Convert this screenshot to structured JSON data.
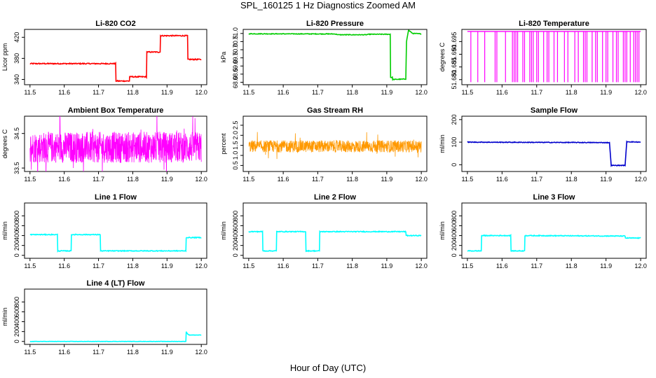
{
  "title": "SPL_160125  1 Hz Diagnostics Zoomed AM",
  "xlabel": "Hour of Day (UTC)",
  "chart_data": [
    {
      "type": "line",
      "title": "Li-820 CO2",
      "ylabel": "Licor ppm",
      "color": "#ff0000",
      "xlim": [
        11.5,
        12.0
      ],
      "ylim": [
        330,
        435
      ],
      "xticks": [
        "11.5",
        "11.6",
        "11.7",
        "11.8",
        "11.9",
        "12.0"
      ],
      "yticks": [
        "340",
        "380",
        "420"
      ],
      "grid": false,
      "noise": 1,
      "series": [
        {
          "x": [
            11.5,
            11.75,
            11.751,
            11.79,
            11.791,
            11.84,
            11.841,
            11.88,
            11.881,
            11.96,
            11.961,
            12.0
          ],
          "y": [
            370,
            370,
            337,
            337,
            345,
            345,
            392,
            392,
            423,
            423,
            378,
            378
          ]
        }
      ]
    },
    {
      "type": "line",
      "title": "Li-820 Pressure",
      "ylabel": "kPa",
      "color": "#00cc00",
      "xlim": [
        11.5,
        12.0
      ],
      "ylim": [
        67.85,
        71.25
      ],
      "xticks": [
        "11.5",
        "11.6",
        "11.7",
        "11.8",
        "11.9",
        "12.0"
      ],
      "yticks": [
        "68.0",
        "68.5",
        "69.0",
        "69.5",
        "70.0",
        "70.5",
        "71.0"
      ],
      "grid": false,
      "noise": 0.02,
      "series": [
        {
          "x": [
            11.5,
            11.75,
            11.76,
            11.84,
            11.85,
            11.91,
            11.911,
            11.916,
            11.917,
            11.955,
            11.957,
            11.963,
            11.975,
            12.0
          ],
          "y": [
            70.98,
            70.97,
            70.92,
            70.92,
            70.95,
            70.95,
            68.3,
            68.3,
            68.17,
            68.2,
            70.5,
            71.2,
            71.0,
            70.98
          ]
        }
      ]
    },
    {
      "type": "line",
      "title": "Li-820 Temperature",
      "ylabel": "degrees C",
      "color": "#ff00ff",
      "xlim": [
        11.5,
        12.0
      ],
      "ylim": [
        51.678,
        51.6998
      ],
      "xticks": [
        "11.5",
        "11.6",
        "11.7",
        "11.8",
        "11.9",
        "12.0"
      ],
      "yticks": [
        "51.680",
        "51.685",
        "51.690",
        "51.695"
      ],
      "grid": false,
      "high": 51.699,
      "low": 51.679,
      "dips": [
        11.51,
        11.53,
        11.55,
        11.58,
        11.585,
        11.61,
        11.63,
        11.635,
        11.64,
        11.645,
        11.66,
        11.665,
        11.68,
        11.685,
        11.69,
        11.7,
        11.705,
        11.72,
        11.73,
        11.735,
        11.75,
        11.76,
        11.78,
        11.79,
        11.81,
        11.82,
        11.835,
        11.84,
        11.845,
        11.86,
        11.87,
        11.875,
        11.89,
        11.9,
        11.905,
        11.92,
        11.93,
        11.935,
        11.95,
        11.955,
        11.96,
        11.97,
        11.98,
        11.985,
        11.99,
        11.995
      ]
    },
    {
      "type": "line",
      "title": "Ambient Box Temperature",
      "ylabel": "degrees C",
      "color": "#ff00ff",
      "xlim": [
        11.5,
        12.0
      ],
      "ylim": [
        33.4,
        35.0
      ],
      "xticks": [
        "11.5",
        "11.6",
        "11.7",
        "11.8",
        "11.9",
        "12.0"
      ],
      "yticks": [
        "33.5",
        "34.5"
      ],
      "grid": false,
      "center": 34.1,
      "amplitude": 0.45
    },
    {
      "type": "line",
      "title": "Gas Stream RH",
      "ylabel": "percent",
      "color": "#ff9900",
      "xlim": [
        11.5,
        12.0
      ],
      "ylim": [
        0.2,
        2.95
      ],
      "xticks": [
        "11.5",
        "11.6",
        "11.7",
        "11.8",
        "11.9",
        "12.0"
      ],
      "yticks": [
        "0.5",
        "1.0",
        "1.5",
        "2.0",
        "2.5"
      ],
      "grid": false,
      "center": 1.45,
      "amplitude": 0.3
    },
    {
      "type": "line",
      "title": "Sample Flow",
      "ylabel": "ml/min",
      "color": "#0000cc",
      "xlim": [
        11.5,
        12.0
      ],
      "ylim": [
        -30,
        215
      ],
      "xticks": [
        "11.5",
        "11.6",
        "11.7",
        "11.8",
        "11.9",
        "12.0"
      ],
      "yticks": [
        "0",
        "100",
        "200"
      ],
      "grid": false,
      "noise": 1.5,
      "series": [
        {
          "x": [
            11.5,
            11.91,
            11.915,
            11.955,
            11.96,
            12.0
          ],
          "y": [
            100,
            98,
            -3,
            -3,
            102,
            100
          ]
        }
      ]
    },
    {
      "type": "line",
      "title": "Line 1 Flow",
      "ylabel": "ml/min",
      "color": "#00ffff",
      "xlim": [
        11.5,
        12.0
      ],
      "ylim": [
        -60,
        1060
      ],
      "xticks": [
        "11.5",
        "11.6",
        "11.7",
        "11.8",
        "11.9",
        "12.0"
      ],
      "yticks": [
        "0",
        "200",
        "400",
        "600",
        "800"
      ],
      "grid": false,
      "noise": 8,
      "series": [
        {
          "x": [
            11.5,
            11.58,
            11.581,
            11.62,
            11.621,
            11.705,
            11.706,
            11.955,
            11.956,
            12.0
          ],
          "y": [
            420,
            420,
            90,
            90,
            420,
            420,
            90,
            90,
            360,
            360
          ]
        }
      ]
    },
    {
      "type": "line",
      "title": "Line 2 Flow",
      "ylabel": "ml/min",
      "color": "#00ffff",
      "xlim": [
        11.5,
        12.0
      ],
      "ylim": [
        -60,
        1060
      ],
      "xticks": [
        "11.5",
        "11.6",
        "11.7",
        "11.8",
        "11.9",
        "12.0"
      ],
      "yticks": [
        "0",
        "200",
        "400",
        "600",
        "800"
      ],
      "grid": false,
      "noise": 8,
      "series": [
        {
          "x": [
            11.5,
            11.54,
            11.541,
            11.58,
            11.581,
            11.665,
            11.666,
            11.705,
            11.706,
            11.955,
            11.956,
            12.0
          ],
          "y": [
            480,
            480,
            90,
            90,
            480,
            480,
            90,
            90,
            480,
            480,
            400,
            400
          ]
        }
      ]
    },
    {
      "type": "line",
      "title": "Line 3 Flow",
      "ylabel": "ml/min",
      "color": "#00ffff",
      "xlim": [
        11.5,
        12.0
      ],
      "ylim": [
        -60,
        1060
      ],
      "xticks": [
        "11.5",
        "11.6",
        "11.7",
        "11.8",
        "11.9",
        "12.0"
      ],
      "yticks": [
        "0",
        "200",
        "400",
        "600",
        "800"
      ],
      "grid": false,
      "noise": 8,
      "series": [
        {
          "x": [
            11.5,
            11.54,
            11.541,
            11.625,
            11.626,
            11.665,
            11.666,
            11.955,
            11.956,
            12.0
          ],
          "y": [
            90,
            90,
            400,
            400,
            90,
            90,
            400,
            390,
            350,
            350
          ]
        }
      ]
    },
    {
      "type": "line",
      "title": "Line 4 (LT) Flow",
      "ylabel": "ml/min",
      "color": "#00ffff",
      "xlim": [
        11.5,
        12.0
      ],
      "ylim": [
        -60,
        1060
      ],
      "xticks": [
        "11.5",
        "11.6",
        "11.7",
        "11.8",
        "11.9",
        "12.0"
      ],
      "yticks": [
        "0",
        "200",
        "400",
        "600",
        "800"
      ],
      "grid": false,
      "noise": 3,
      "series": [
        {
          "x": [
            11.5,
            11.955,
            11.956,
            11.96,
            11.965,
            12.0
          ],
          "y": [
            0,
            0,
            200,
            150,
            130,
            130
          ]
        }
      ]
    }
  ]
}
